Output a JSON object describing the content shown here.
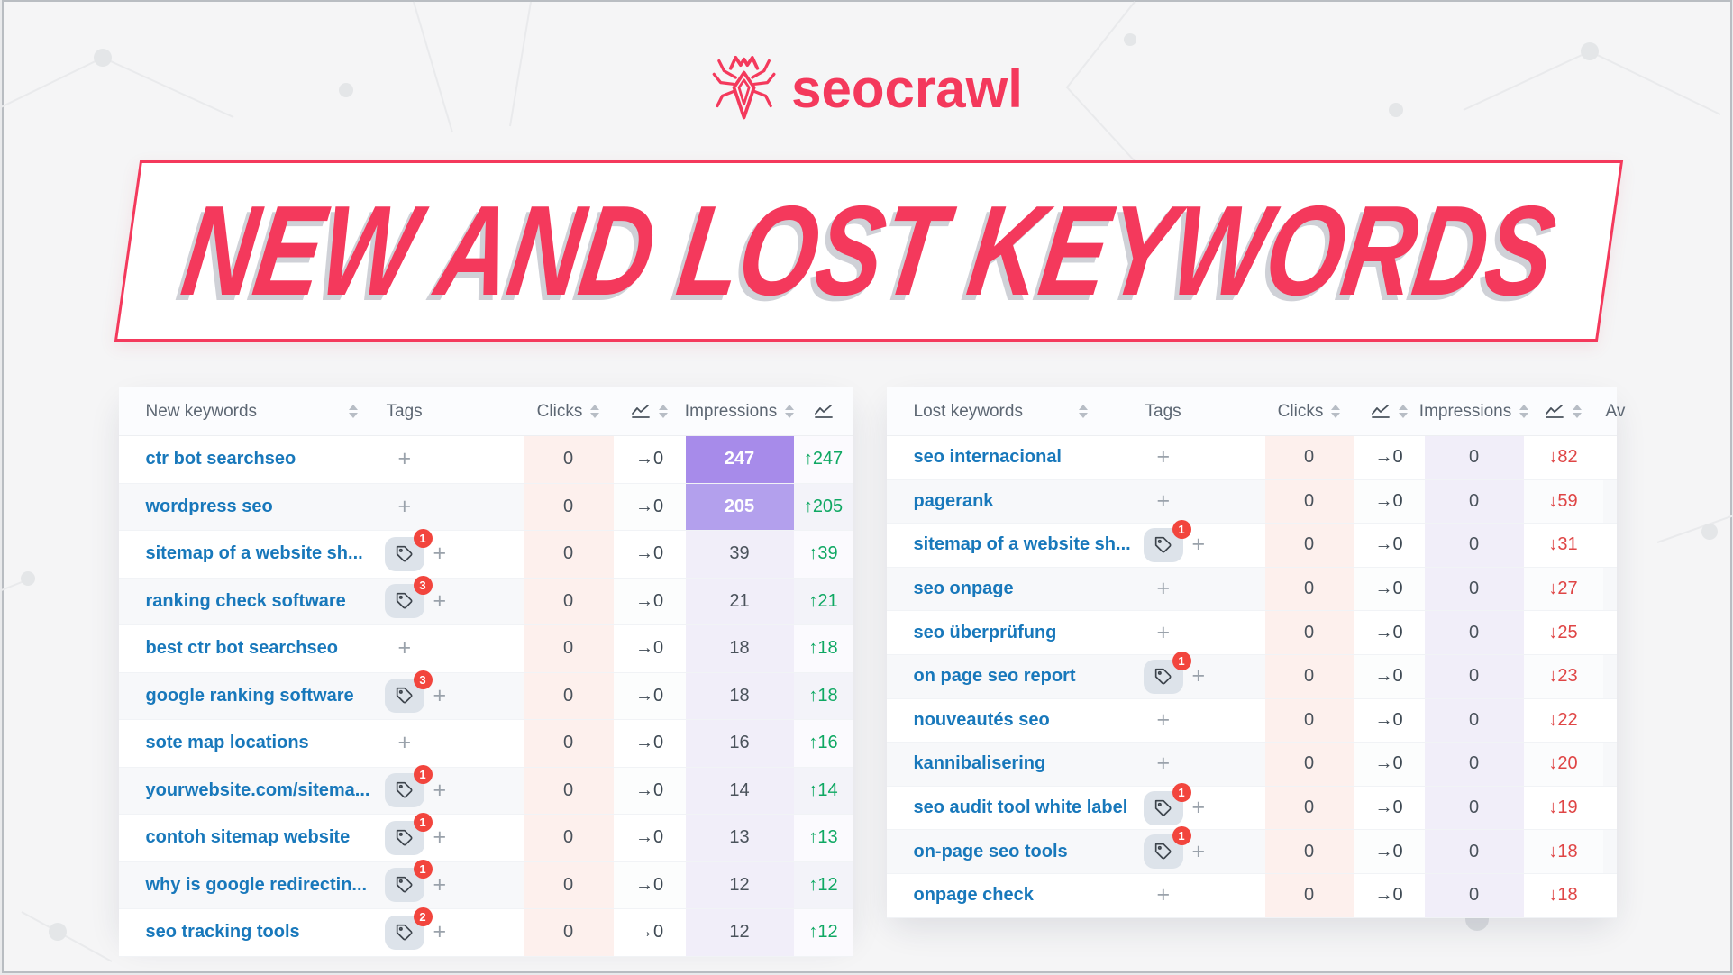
{
  "logo": {
    "brand": "seocrawl"
  },
  "banner": {
    "title": "NEW AND LOST KEYWORDS"
  },
  "colors": {
    "brand": "#f4395c",
    "link": "#1878bb",
    "up": "#0fa863",
    "down": "#df4545",
    "purple_strong": "#a78bea",
    "purple_soft": "#b3a0ed",
    "clicks_tint": "#fdf0ed",
    "impressions_tint": "#f1eef9",
    "badge": "#f2453d"
  },
  "tables": {
    "new": {
      "headers": {
        "keyword": "New keywords",
        "tags": "Tags",
        "clicks": "Clicks",
        "impressions": "Impressions"
      },
      "trend_direction": "up",
      "rows": [
        {
          "keyword": "ctr bot searchseo",
          "tag_count": null,
          "clicks": "0",
          "clicks_trend": "→0",
          "impressions": "247",
          "impressions_highlight": "strong",
          "impressions_trend": "↑247"
        },
        {
          "keyword": "wordpress seo",
          "tag_count": null,
          "clicks": "0",
          "clicks_trend": "→0",
          "impressions": "205",
          "impressions_highlight": "soft",
          "impressions_trend": "↑205"
        },
        {
          "keyword": "sitemap of a website sh...",
          "tag_count": 1,
          "clicks": "0",
          "clicks_trend": "→0",
          "impressions": "39",
          "impressions_highlight": null,
          "impressions_trend": "↑39"
        },
        {
          "keyword": "ranking check software",
          "tag_count": 3,
          "clicks": "0",
          "clicks_trend": "→0",
          "impressions": "21",
          "impressions_highlight": null,
          "impressions_trend": "↑21"
        },
        {
          "keyword": "best ctr bot searchseo",
          "tag_count": null,
          "clicks": "0",
          "clicks_trend": "→0",
          "impressions": "18",
          "impressions_highlight": null,
          "impressions_trend": "↑18"
        },
        {
          "keyword": "google ranking software",
          "tag_count": 3,
          "clicks": "0",
          "clicks_trend": "→0",
          "impressions": "18",
          "impressions_highlight": null,
          "impressions_trend": "↑18"
        },
        {
          "keyword": "sote map locations",
          "tag_count": null,
          "clicks": "0",
          "clicks_trend": "→0",
          "impressions": "16",
          "impressions_highlight": null,
          "impressions_trend": "↑16"
        },
        {
          "keyword": "yourwebsite.com/sitema...",
          "tag_count": 1,
          "clicks": "0",
          "clicks_trend": "→0",
          "impressions": "14",
          "impressions_highlight": null,
          "impressions_trend": "↑14"
        },
        {
          "keyword": "contoh sitemap website",
          "tag_count": 1,
          "clicks": "0",
          "clicks_trend": "→0",
          "impressions": "13",
          "impressions_highlight": null,
          "impressions_trend": "↑13"
        },
        {
          "keyword": "why is google redirectin...",
          "tag_count": 1,
          "clicks": "0",
          "clicks_trend": "→0",
          "impressions": "12",
          "impressions_highlight": null,
          "impressions_trend": "↑12"
        },
        {
          "keyword": "seo tracking tools",
          "tag_count": 2,
          "clicks": "0",
          "clicks_trend": "→0",
          "impressions": "12",
          "impressions_highlight": null,
          "impressions_trend": "↑12"
        }
      ]
    },
    "lost": {
      "headers": {
        "keyword": "Lost keywords",
        "tags": "Tags",
        "clicks": "Clicks",
        "impressions": "Impressions",
        "trailing": "Av"
      },
      "trend_direction": "down",
      "rows": [
        {
          "keyword": "seo internacional",
          "tag_count": null,
          "clicks": "0",
          "clicks_trend": "→0",
          "impressions": "0",
          "impressions_highlight": null,
          "impressions_trend": "↓82"
        },
        {
          "keyword": "pagerank",
          "tag_count": null,
          "clicks": "0",
          "clicks_trend": "→0",
          "impressions": "0",
          "impressions_highlight": null,
          "impressions_trend": "↓59"
        },
        {
          "keyword": "sitemap of a website sh...",
          "tag_count": 1,
          "clicks": "0",
          "clicks_trend": "→0",
          "impressions": "0",
          "impressions_highlight": null,
          "impressions_trend": "↓31"
        },
        {
          "keyword": "seo onpage",
          "tag_count": null,
          "clicks": "0",
          "clicks_trend": "→0",
          "impressions": "0",
          "impressions_highlight": null,
          "impressions_trend": "↓27"
        },
        {
          "keyword": "seo überprüfung",
          "tag_count": null,
          "clicks": "0",
          "clicks_trend": "→0",
          "impressions": "0",
          "impressions_highlight": null,
          "impressions_trend": "↓25"
        },
        {
          "keyword": "on page seo report",
          "tag_count": 1,
          "clicks": "0",
          "clicks_trend": "→0",
          "impressions": "0",
          "impressions_highlight": null,
          "impressions_trend": "↓23"
        },
        {
          "keyword": "nouveautés seo",
          "tag_count": null,
          "clicks": "0",
          "clicks_trend": "→0",
          "impressions": "0",
          "impressions_highlight": null,
          "impressions_trend": "↓22"
        },
        {
          "keyword": "kannibalisering",
          "tag_count": null,
          "clicks": "0",
          "clicks_trend": "→0",
          "impressions": "0",
          "impressions_highlight": null,
          "impressions_trend": "↓20"
        },
        {
          "keyword": "seo audit tool white label",
          "tag_count": 1,
          "clicks": "0",
          "clicks_trend": "→0",
          "impressions": "0",
          "impressions_highlight": null,
          "impressions_trend": "↓19"
        },
        {
          "keyword": "on-page seo tools",
          "tag_count": 1,
          "clicks": "0",
          "clicks_trend": "→0",
          "impressions": "0",
          "impressions_highlight": null,
          "impressions_trend": "↓18"
        },
        {
          "keyword": "onpage check",
          "tag_count": null,
          "clicks": "0",
          "clicks_trend": "→0",
          "impressions": "0",
          "impressions_highlight": null,
          "impressions_trend": "↓18"
        }
      ]
    }
  }
}
